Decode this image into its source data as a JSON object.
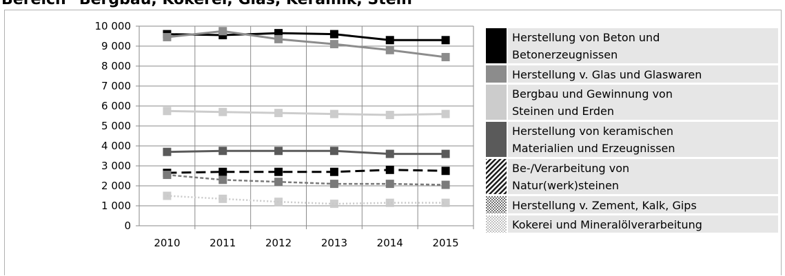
{
  "title": "Bereich \"Bergbau, Kokerei, Glas, Keramik, Stein\"",
  "chart_data": {
    "type": "line",
    "title": "Bereich \"Bergbau, Kokerei, Glas, Keramik, Stein\"",
    "xlabel": "",
    "ylabel": "",
    "x": [
      "2010",
      "2011",
      "2012",
      "2013",
      "2014",
      "2015"
    ],
    "ylim": [
      0,
      10000
    ],
    "yticks": [
      "0",
      "1 000",
      "2 000",
      "3 000",
      "4 000",
      "5 000",
      "6 000",
      "7 000",
      "8 000",
      "9 000",
      "10 000"
    ],
    "grid": true,
    "legend_position": "right",
    "series": [
      {
        "name": "Herstellung von Beton und Betonerzeugnissen",
        "name_lines": [
          "Herstellung von Beton und",
          "Betonerzeugnissen"
        ],
        "values": [
          9600,
          9550,
          9650,
          9600,
          9300,
          9300
        ],
        "color": "#000000",
        "style": "solid",
        "pattern": "solid"
      },
      {
        "name": "Herstellung v. Glas und Glaswaren",
        "name_lines": [
          "Herstellung v. Glas und Glaswaren"
        ],
        "values": [
          9450,
          9750,
          9350,
          9100,
          8800,
          8450
        ],
        "color": "#8c8c8c",
        "style": "solid",
        "pattern": "solid"
      },
      {
        "name": "Bergbau und Gewinnung von Steinen und Erden",
        "name_lines": [
          "Bergbau und Gewinnung von",
          "Steinen und Erden"
        ],
        "values": [
          5750,
          5700,
          5650,
          5600,
          5550,
          5600
        ],
        "color": "#cccccc",
        "style": "solid",
        "pattern": "solid"
      },
      {
        "name": "Herstellung von keramischen Materialien und Erzeugnissen",
        "name_lines": [
          "Herstellung von keramischen",
          "Materialien und Erzeugnissen"
        ],
        "values": [
          3700,
          3750,
          3750,
          3750,
          3600,
          3600
        ],
        "color": "#5a5a5a",
        "style": "solid",
        "pattern": "solid"
      },
      {
        "name": "Be-/Verarbeitung von Natur(werk)steinen",
        "name_lines": [
          "Be-/Verarbeitung von",
          "Natur(werk)steinen"
        ],
        "values": [
          2650,
          2700,
          2700,
          2700,
          2800,
          2750
        ],
        "color": "#000000",
        "style": "longdash",
        "pattern": "hatch"
      },
      {
        "name": "Herstellung v. Zement, Kalk, Gips",
        "name_lines": [
          "Herstellung v. Zement, Kalk, Gips"
        ],
        "values": [
          2550,
          2300,
          2200,
          2100,
          2100,
          2050
        ],
        "color": "#7a7a7a",
        "style": "shortdash",
        "pattern": "dots-dark"
      },
      {
        "name": "Kokerei und Mineralölverarbeitung",
        "name_lines": [
          "Kokerei und Mineralölverarbeitung"
        ],
        "values": [
          1500,
          1350,
          1200,
          1100,
          1150,
          1150
        ],
        "color": "#c8c8c8",
        "style": "dotted",
        "pattern": "dots-light"
      }
    ]
  }
}
